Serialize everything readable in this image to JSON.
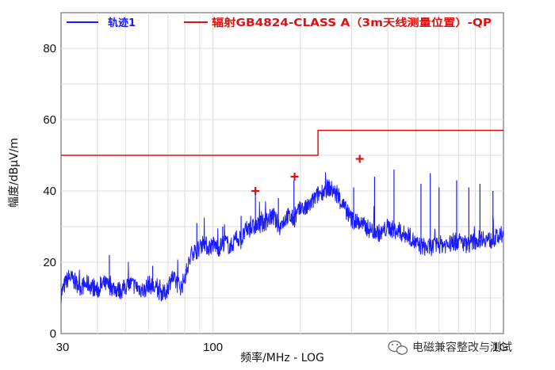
{
  "chart_data": {
    "type": "line",
    "title": "",
    "xlabel": "频率/MHz - LOG",
    "ylabel": "幅度/dBµV/m",
    "x_scale": "log",
    "xlim": [
      30,
      1000
    ],
    "ylim": [
      0,
      90
    ],
    "x_ticks": [
      30,
      100,
      1000
    ],
    "x_tick_labels": [
      "30",
      "100",
      "1G"
    ],
    "y_ticks": [
      0,
      20,
      40,
      60,
      80
    ],
    "grid": true,
    "legend_position": "top",
    "series": [
      {
        "name": "轨迹1",
        "color": "#1a1aff",
        "x": [
          30,
          31,
          32,
          33,
          35,
          37,
          40,
          42,
          45,
          48,
          50,
          52,
          55,
          58,
          60,
          62,
          65,
          68,
          70,
          72,
          75,
          78,
          80,
          83,
          85,
          87,
          90,
          93,
          96,
          100,
          105,
          110,
          115,
          120,
          125,
          130,
          140,
          150,
          160,
          170,
          180,
          190,
          200,
          210,
          220,
          230,
          240,
          250,
          260,
          280,
          300,
          320,
          350,
          380,
          400,
          420,
          450,
          480,
          500,
          550,
          600,
          650,
          700,
          750,
          800,
          850,
          900,
          950,
          1000
        ],
        "y": [
          11,
          14,
          16,
          15,
          13,
          14,
          12,
          14,
          13,
          12,
          13,
          14,
          13,
          12,
          14,
          13,
          12,
          11,
          13,
          16,
          14,
          13,
          16,
          20,
          23,
          23,
          24,
          26,
          24,
          25,
          24,
          26,
          24,
          27,
          26,
          29,
          30,
          31,
          33,
          30,
          33,
          32,
          35,
          35,
          37,
          39,
          40,
          41,
          40,
          36,
          32,
          31,
          29,
          28,
          30,
          29,
          28,
          27,
          25,
          24,
          25,
          25,
          26,
          25,
          26,
          27,
          26,
          27,
          27
        ]
      },
      {
        "name": "辐射GB4824-CLASS A（3m天线测量位置）-QP",
        "color": "#e01010",
        "x": [
          30,
          230,
          230,
          1000
        ],
        "y": [
          50,
          50,
          57,
          57
        ]
      }
    ],
    "spikes": [
      {
        "x": 41,
        "y": 16
      },
      {
        "x": 44,
        "y": 22
      },
      {
        "x": 62,
        "y": 19
      },
      {
        "x": 88,
        "y": 31
      },
      {
        "x": 108,
        "y": 30
      },
      {
        "x": 125,
        "y": 33
      },
      {
        "x": 140,
        "y": 39
      },
      {
        "x": 168,
        "y": 38
      },
      {
        "x": 190,
        "y": 43
      },
      {
        "x": 305,
        "y": 41
      },
      {
        "x": 360,
        "y": 44
      },
      {
        "x": 420,
        "y": 46
      },
      {
        "x": 520,
        "y": 42
      },
      {
        "x": 560,
        "y": 45
      },
      {
        "x": 600,
        "y": 41
      },
      {
        "x": 690,
        "y": 43
      },
      {
        "x": 760,
        "y": 41
      },
      {
        "x": 830,
        "y": 42
      },
      {
        "x": 920,
        "y": 40
      }
    ],
    "markers": [
      {
        "x": 140,
        "y": 40
      },
      {
        "x": 191,
        "y": 44
      },
      {
        "x": 320,
        "y": 49
      }
    ]
  },
  "watermark": {
    "icon": "wechat-icon",
    "text": "电磁兼容整改与测试"
  }
}
